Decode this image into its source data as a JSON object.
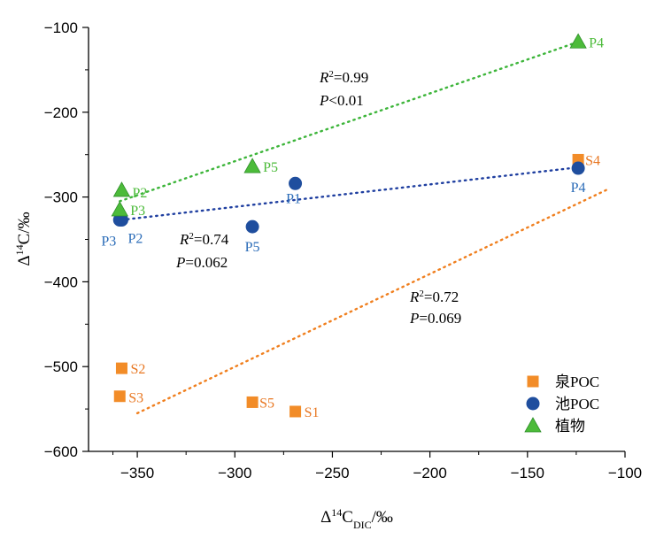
{
  "chart_data": {
    "type": "scatter",
    "xlabel": "Δ14CDIC/‰",
    "ylabel": "Δ14C/‰",
    "xlim": [
      -375,
      -100
    ],
    "ylim": [
      -600,
      -100
    ],
    "xticks": [
      -350,
      -300,
      -250,
      -200,
      -150,
      -100
    ],
    "yticks": [
      -600,
      -500,
      -400,
      -300,
      -200,
      -100
    ],
    "xtick_labels": [
      "−350",
      "−300",
      "−250",
      "−200",
      "−150",
      "−100"
    ],
    "ytick_labels": [
      "−600",
      "−500",
      "−400",
      "−300",
      "−200",
      "−100"
    ],
    "grid": false,
    "legend_position": "bottom-right",
    "series": [
      {
        "name": "泉POC",
        "marker": "square",
        "color": "#F28C28",
        "labelColor": "#E87722",
        "points": [
          {
            "label": "S1",
            "x": -269,
            "y": -553
          },
          {
            "label": "S2",
            "x": -358,
            "y": -502
          },
          {
            "label": "S3",
            "x": -359,
            "y": -535
          },
          {
            "label": "S4",
            "x": -124,
            "y": -256
          },
          {
            "label": "S5",
            "x": -291,
            "y": -542
          }
        ],
        "fit": {
          "x": [
            -350,
            -108
          ],
          "y": [
            -555,
            -290
          ],
          "color": "#F07F1E",
          "r2_label": "R2=0.72",
          "r2_prefix": "R",
          "r2_sup": "2",
          "r2_rest": "=0.72",
          "p_label": "P=0.069",
          "p_prefix": "P",
          "p_rest": "=0.069"
        }
      },
      {
        "name": "池POC",
        "marker": "circle",
        "color": "#1F4E9E",
        "labelColor": "#2B6CB8",
        "points": [
          {
            "label": "P1",
            "x": -269,
            "y": -284
          },
          {
            "label": "P2",
            "x": -358,
            "y": -327
          },
          {
            "label": "P3",
            "x": -359,
            "y": -327
          },
          {
            "label": "P4",
            "x": -124,
            "y": -266
          },
          {
            "label": "P5",
            "x": -291,
            "y": -335
          }
        ],
        "fit": {
          "x": [
            -358,
            -124
          ],
          "y": [
            -327,
            -265
          ],
          "color": "#1F3FA0",
          "r2_label": "R2=0.74",
          "r2_prefix": "R",
          "r2_sup": "2",
          "r2_rest": "=0.74",
          "p_label": "P=0.062",
          "p_prefix": "P",
          "p_rest": "=0.062"
        }
      },
      {
        "name": "植物",
        "marker": "triangle",
        "color": "#4CBB3A",
        "labelColor": "#4CBB3A",
        "points": [
          {
            "label": "P2",
            "x": -358,
            "y": -292
          },
          {
            "label": "P3",
            "x": -359,
            "y": -315
          },
          {
            "label": "P5",
            "x": -291,
            "y": -264
          },
          {
            "label": "P4",
            "x": -124,
            "y": -117
          }
        ],
        "fit": {
          "x": [
            -359,
            -124
          ],
          "y": [
            -305,
            -117
          ],
          "color": "#3DB53A",
          "r2_label": "R2=0.99",
          "r2_prefix": "R",
          "r2_sup": "2",
          "r2_rest": "=0.99",
          "p_label": "P<0.01",
          "p_prefix": "P",
          "p_rest": "<0.01"
        }
      }
    ]
  }
}
